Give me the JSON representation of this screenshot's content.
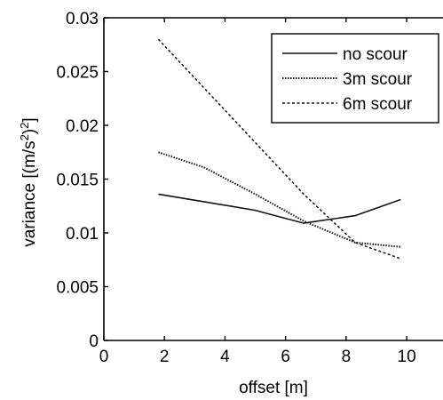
{
  "chart_data": {
    "type": "line",
    "xlabel": "offset [m]",
    "ylabel": "variance [(m/s",
    "ylabel_sup1": "2",
    "ylabel_mid": ")",
    "ylabel_sup2": "2",
    "ylabel_end": "]",
    "xlim": [
      0,
      11.2
    ],
    "ylim": [
      0,
      0.03
    ],
    "xticks": [
      0,
      2,
      4,
      6,
      8,
      10
    ],
    "xtick_labels": [
      "0",
      "2",
      "4",
      "6",
      "8",
      "10"
    ],
    "yticks": [
      0,
      0.005,
      0.01,
      0.015,
      0.02,
      0.025,
      0.03
    ],
    "ytick_labels": [
      "0",
      "0.005",
      "0.01",
      "0.015",
      "0.02",
      "0.025",
      "0.03"
    ],
    "grid": false,
    "legend_position": "top-right",
    "series": [
      {
        "name": "no scour",
        "dash": "solid",
        "x": [
          1.8,
          3.3,
          5.0,
          6.6,
          8.3,
          9.8
        ],
        "y": [
          0.0136,
          0.0129,
          0.0121,
          0.0109,
          0.0116,
          0.0131
        ]
      },
      {
        "name": "3m scour",
        "dash": "dotted",
        "x": [
          1.8,
          3.3,
          5.0,
          6.6,
          8.3,
          9.8
        ],
        "y": [
          0.0175,
          0.0161,
          0.0136,
          0.0111,
          0.0091,
          0.0087
        ]
      },
      {
        "name": "6m scour",
        "dash": "dashed",
        "x": [
          1.8,
          6.6,
          8.3,
          9.8
        ],
        "y": [
          0.028,
          0.0136,
          0.0091,
          0.0076
        ]
      }
    ]
  }
}
